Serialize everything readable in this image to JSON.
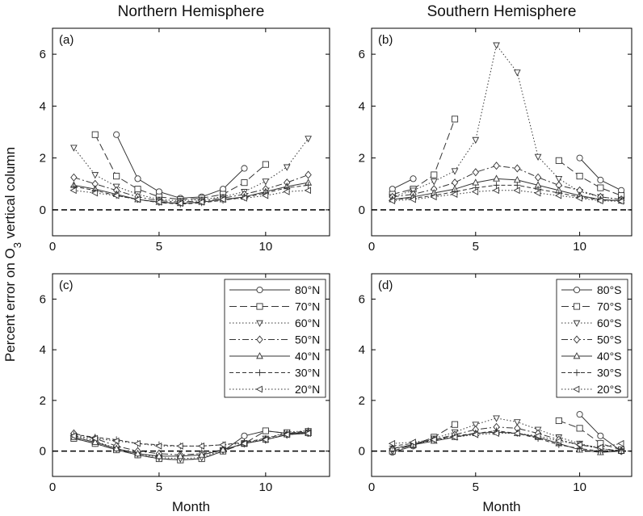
{
  "figure": {
    "ylabel_parts": [
      "Percent error on O",
      "3",
      " vertical column"
    ]
  },
  "chart_data": [
    {
      "type": "line",
      "title": "Northern Hemisphere",
      "panel_label": "(a)",
      "x": [
        1,
        2,
        3,
        4,
        5,
        6,
        7,
        8,
        9,
        10,
        11,
        12
      ],
      "xlim": [
        0,
        13
      ],
      "ylim": [
        -1,
        7
      ],
      "xticks": [
        0,
        5,
        10
      ],
      "yticks": [
        0,
        2,
        4,
        6
      ],
      "hline": 0,
      "color": "#333333",
      "series": [
        {
          "marker": "o",
          "dash": "solid",
          "values": [
            null,
            null,
            2.9,
            1.2,
            0.7,
            0.45,
            0.5,
            0.8,
            1.6,
            null,
            null,
            null
          ]
        },
        {
          "marker": "s",
          "dash": "longdash",
          "values": [
            null,
            2.9,
            1.3,
            0.8,
            0.5,
            0.4,
            0.45,
            0.6,
            1.05,
            1.75,
            null,
            null
          ]
        },
        {
          "marker": "v",
          "dash": "dotted",
          "values": [
            2.4,
            1.35,
            0.9,
            0.6,
            0.4,
            0.35,
            0.4,
            0.5,
            0.7,
            1.1,
            1.65,
            2.75
          ]
        },
        {
          "marker": "d",
          "dash": "dashdot",
          "values": [
            1.25,
            1.0,
            0.75,
            0.5,
            0.35,
            0.3,
            0.35,
            0.45,
            0.6,
            0.8,
            1.05,
            1.35
          ]
        },
        {
          "marker": "^",
          "dash": "solid",
          "values": [
            0.95,
            0.8,
            0.6,
            0.4,
            0.3,
            0.25,
            0.3,
            0.4,
            0.5,
            0.7,
            0.9,
            1.05
          ]
        },
        {
          "marker": "+",
          "dash": "dashed",
          "values": [
            0.9,
            0.75,
            0.55,
            0.4,
            0.28,
            0.22,
            0.27,
            0.37,
            0.48,
            0.65,
            0.85,
            0.95
          ]
        },
        {
          "marker": "<",
          "dash": "dotted",
          "values": [
            0.75,
            0.65,
            0.55,
            0.4,
            0.3,
            0.25,
            0.3,
            0.4,
            0.45,
            0.55,
            0.7,
            0.75
          ]
        }
      ]
    },
    {
      "type": "line",
      "title": "Southern Hemisphere",
      "panel_label": "(b)",
      "x": [
        1,
        2,
        3,
        4,
        5,
        6,
        7,
        8,
        9,
        10,
        11,
        12
      ],
      "xlim": [
        0,
        12.5
      ],
      "ylim": [
        -1,
        7
      ],
      "xticks": [
        0,
        5,
        10
      ],
      "yticks": [
        0,
        2,
        4,
        6
      ],
      "hline": 0,
      "color": "#333333",
      "series": [
        {
          "marker": "o",
          "dash": "solid",
          "values": [
            0.8,
            1.2,
            null,
            null,
            null,
            null,
            null,
            null,
            null,
            2.0,
            1.15,
            0.75
          ]
        },
        {
          "marker": "s",
          "dash": "longdash",
          "values": [
            0.6,
            0.8,
            1.35,
            3.5,
            null,
            null,
            null,
            null,
            1.9,
            1.3,
            0.85,
            0.55
          ]
        },
        {
          "marker": "v",
          "dash": "dotted",
          "values": [
            0.5,
            0.75,
            1.1,
            1.5,
            2.7,
            6.35,
            5.3,
            2.05,
            1.2,
            0.7,
            0.5,
            0.4
          ]
        },
        {
          "marker": "d",
          "dash": "dashdot",
          "values": [
            0.5,
            0.6,
            0.8,
            1.05,
            1.45,
            1.7,
            1.6,
            1.25,
            0.95,
            0.75,
            0.5,
            0.4
          ]
        },
        {
          "marker": "^",
          "dash": "solid",
          "values": [
            0.4,
            0.5,
            0.65,
            0.8,
            1.05,
            1.2,
            1.15,
            0.95,
            0.75,
            0.55,
            0.4,
            0.35
          ]
        },
        {
          "marker": "+",
          "dash": "dashed",
          "values": [
            0.4,
            0.45,
            0.55,
            0.7,
            0.85,
            0.95,
            0.95,
            0.8,
            0.65,
            0.5,
            0.38,
            0.35
          ]
        },
        {
          "marker": "<",
          "dash": "dotted",
          "values": [
            0.35,
            0.4,
            0.5,
            0.6,
            0.7,
            0.75,
            0.75,
            0.65,
            0.55,
            0.45,
            0.35,
            0.33
          ]
        }
      ]
    },
    {
      "type": "line",
      "panel_label": "(c)",
      "xlabel": "Month",
      "legend": "upper right",
      "x": [
        1,
        2,
        3,
        4,
        5,
        6,
        7,
        8,
        9,
        10,
        11,
        12
      ],
      "xlim": [
        0,
        13
      ],
      "ylim": [
        -1,
        7
      ],
      "xticks": [
        0,
        5,
        10
      ],
      "yticks": [
        0,
        2,
        4,
        6
      ],
      "hline": 0,
      "color": "#333333",
      "series": [
        {
          "name": "80°N",
          "marker": "o",
          "dash": "solid",
          "values": [
            0.5,
            0.3,
            0.05,
            -0.15,
            -0.3,
            -0.35,
            -0.3,
            0,
            0.6,
            0.8,
            0.7,
            0.7
          ]
        },
        {
          "name": "70°N",
          "marker": "s",
          "dash": "longdash",
          "values": [
            0.5,
            0.3,
            0.05,
            -0.15,
            -0.3,
            -0.35,
            -0.3,
            0,
            0.3,
            0.8,
            0.7,
            0.75
          ]
        },
        {
          "name": "60°N",
          "marker": "v",
          "dash": "dotted",
          "values": [
            0.6,
            0.4,
            0.1,
            -0.1,
            -0.25,
            -0.3,
            -0.25,
            0.05,
            0.3,
            0.5,
            0.75,
            0.8
          ]
        },
        {
          "name": "50°N",
          "marker": "d",
          "dash": "dashdot",
          "values": [
            0.7,
            0.5,
            0.2,
            0,
            -0.1,
            -0.15,
            -0.1,
            0.05,
            0.3,
            0.45,
            0.65,
            0.75
          ]
        },
        {
          "name": "40°N",
          "marker": "^",
          "dash": "solid",
          "values": [
            0.55,
            0.35,
            0.1,
            -0.1,
            -0.2,
            -0.2,
            -0.15,
            0.05,
            0.3,
            0.45,
            0.65,
            0.7
          ]
        },
        {
          "name": "30°N",
          "marker": "+",
          "dash": "dashed",
          "values": [
            0.65,
            0.55,
            0.45,
            0.3,
            0.25,
            0.2,
            0.2,
            0.25,
            0.35,
            0.5,
            0.7,
            0.8
          ]
        },
        {
          "name": "20°N",
          "marker": "<",
          "dash": "dotted",
          "values": [
            0.6,
            0.5,
            0.4,
            0.3,
            0.2,
            0.2,
            0.2,
            0.25,
            0.3,
            0.45,
            0.65,
            0.7
          ]
        }
      ]
    },
    {
      "type": "line",
      "panel_label": "(d)",
      "xlabel": "Month",
      "legend": "upper right",
      "x": [
        1,
        2,
        3,
        4,
        5,
        6,
        7,
        8,
        9,
        10,
        11,
        12
      ],
      "xlim": [
        0,
        12.5
      ],
      "ylim": [
        -1,
        7
      ],
      "xticks": [
        0,
        5,
        10
      ],
      "yticks": [
        0,
        2,
        4,
        6
      ],
      "hline": 0,
      "color": "#333333",
      "series": [
        {
          "name": "80°S",
          "marker": "o",
          "dash": "solid",
          "values": [
            -0.05,
            0.2,
            null,
            null,
            null,
            null,
            null,
            null,
            null,
            1.45,
            0.6,
            0.0
          ]
        },
        {
          "name": "70°S",
          "marker": "s",
          "dash": "longdash",
          "values": [
            0,
            0.25,
            0.55,
            1.05,
            null,
            null,
            null,
            null,
            1.2,
            0.9,
            0.3,
            0.05
          ]
        },
        {
          "name": "60°S",
          "marker": "v",
          "dash": "dotted",
          "values": [
            0.0,
            0.25,
            0.5,
            0.75,
            1.05,
            1.3,
            1.15,
            0.85,
            0.55,
            0.3,
            0.1,
            0.0
          ]
        },
        {
          "name": "50°S",
          "marker": "d",
          "dash": "dashdot",
          "values": [
            0.1,
            0.25,
            0.45,
            0.65,
            0.85,
            0.95,
            0.9,
            0.7,
            0.45,
            0.25,
            0.1,
            0.0
          ]
        },
        {
          "name": "40°S",
          "marker": "^",
          "dash": "solid",
          "values": [
            0.1,
            0.25,
            0.4,
            0.55,
            0.7,
            0.75,
            0.7,
            0.55,
            0.3,
            0.05,
            -0.05,
            0.0
          ]
        },
        {
          "name": "30°S",
          "marker": "+",
          "dash": "dashed",
          "values": [
            0.2,
            0.3,
            0.45,
            0.6,
            0.7,
            0.8,
            0.7,
            0.5,
            0.25,
            0.1,
            0.0,
            0.05
          ]
        },
        {
          "name": "20°S",
          "marker": "<",
          "dash": "dotted",
          "values": [
            0.3,
            0.35,
            0.45,
            0.55,
            0.65,
            0.7,
            0.7,
            0.6,
            0.4,
            0.25,
            0.15,
            0.3
          ]
        }
      ]
    }
  ]
}
